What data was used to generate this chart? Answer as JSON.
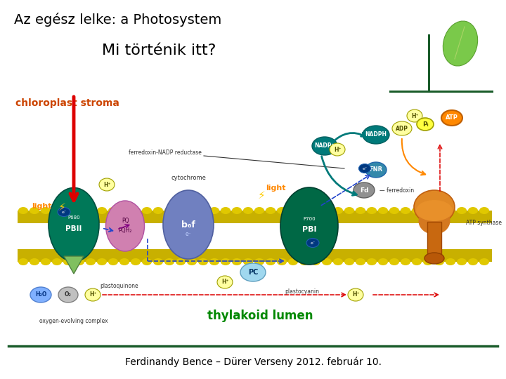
{
  "title": "Az egész lelke: a Photosystem",
  "subtitle": "Mi történik itt?",
  "footer": "Ferdinandy Bence – Dürer Verseny 2012. február 10.",
  "bg": "#ffffff",
  "title_color": "#000000",
  "subtitle_color": "#000000",
  "footer_color": "#000000",
  "line_color": "#1a5c2a",
  "leaf_color": "#1a5c2a",
  "title_fs": 14,
  "subtitle_fs": 16,
  "footer_fs": 10,
  "stroma_color": "#cc4400",
  "lumen_color": "#008800",
  "orange_label": "#ff8800",
  "membrane_fill": "#c8b000",
  "membrane_blob": "#e0c800",
  "psii_fill": "#007858",
  "psi_fill": "#006845",
  "cyt_fill": "#7080c0",
  "pq_fill": "#d080b0",
  "pc_fill": "#a0d8ef",
  "fd_fill": "#909090",
  "fnr_fill": "#3388aa",
  "h_fill": "#ffffa0",
  "h_edge": "#a0a000",
  "nadp_fill": "#007a7a",
  "atp_fill": "#ff8800",
  "adp_fill": "#ffffa0",
  "pi_fill": "#ffff40",
  "atpsyn_fill": "#e07818",
  "red_arrow": "#dd0000",
  "blue_dash": "#2244cc",
  "teal_arrow": "#006666",
  "h2o_fill": "#80b0ff",
  "o2_fill": "#c0c0c0",
  "ecirc_fill": "#003880"
}
